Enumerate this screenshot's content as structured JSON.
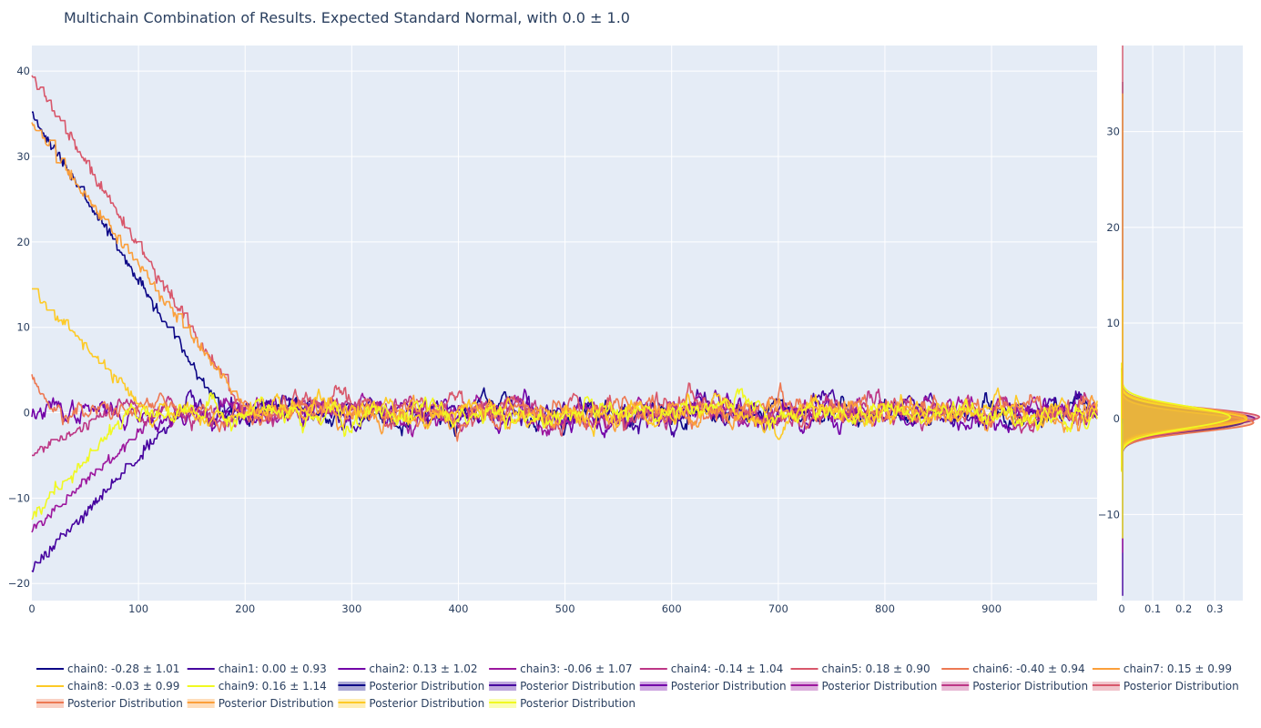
{
  "chart_data": [
    {
      "type": "line",
      "title": "Multichain Combination of Results. Expected Standard Normal, with 0.0 ± 1.0",
      "xlabel": "",
      "ylabel": "",
      "xlim": [
        0,
        999
      ],
      "ylim": [
        -22,
        43
      ],
      "x_ticks": [
        0,
        100,
        200,
        300,
        400,
        500,
        600,
        700,
        800,
        900
      ],
      "y_ticks": [
        -20,
        -10,
        0,
        10,
        20,
        30,
        40
      ],
      "grid": true,
      "legend": "bottom",
      "series": [
        {
          "name": "chain0: -0.28 ± 1.01",
          "color": "#0d0887",
          "start": 35.2,
          "burn_in": 180,
          "seed": 11
        },
        {
          "name": "chain1: 0.00 ± 0.93",
          "color": "#46039f",
          "start": -18.5,
          "burn_in": 140,
          "seed": 23
        },
        {
          "name": "chain2: 0.13 ± 1.02",
          "color": "#7201a8",
          "start": -0.5,
          "burn_in": 0,
          "seed": 37
        },
        {
          "name": "chain3: -0.06 ± 1.07",
          "color": "#9c179e",
          "start": -14.0,
          "burn_in": 120,
          "seed": 41
        },
        {
          "name": "chain4: -0.14 ± 1.04",
          "color": "#bd3786",
          "start": -5.0,
          "burn_in": 70,
          "seed": 53
        },
        {
          "name": "chain5: 0.18 ± 0.90",
          "color": "#d8576b",
          "start": 39.5,
          "burn_in": 200,
          "seed": 67
        },
        {
          "name": "chain6: -0.40 ± 0.94",
          "color": "#ed7953",
          "start": 4.5,
          "burn_in": 20,
          "seed": 71
        },
        {
          "name": "chain7: 0.15 ± 0.99",
          "color": "#fb9f3a",
          "start": 34.0,
          "burn_in": 205,
          "seed": 83
        },
        {
          "name": "chain8: -0.03 ± 0.99",
          "color": "#fdca26",
          "start": 14.5,
          "burn_in": 110,
          "seed": 97
        },
        {
          "name": "chain9: 0.16 ± 1.14",
          "color": "#f0f921",
          "start": -12.5,
          "burn_in": 90,
          "seed": 101
        }
      ]
    },
    {
      "type": "area",
      "orientation": "horizontal",
      "xlim": [
        0,
        0.39
      ],
      "ylim": [
        -19,
        39
      ],
      "x_ticks": [
        0,
        0.1,
        0.2,
        0.3
      ],
      "x_tick_labels": [
        "0",
        "0.1",
        "0.2",
        "0.3"
      ],
      "y_ticks": [
        -10,
        0,
        10,
        20,
        30
      ],
      "grid": true,
      "series": [
        {
          "name": "Posterior Distribution",
          "color": "#0d0887",
          "mean": -0.28,
          "sd": 1.01
        },
        {
          "name": "Posterior Distribution",
          "color": "#46039f",
          "mean": 0.0,
          "sd": 0.93
        },
        {
          "name": "Posterior Distribution",
          "color": "#7201a8",
          "mean": 0.13,
          "sd": 1.02
        },
        {
          "name": "Posterior Distribution",
          "color": "#9c179e",
          "mean": -0.06,
          "sd": 1.07
        },
        {
          "name": "Posterior Distribution",
          "color": "#bd3786",
          "mean": -0.14,
          "sd": 1.04
        },
        {
          "name": "Posterior Distribution",
          "color": "#d8576b",
          "mean": 0.18,
          "sd": 0.9
        },
        {
          "name": "Posterior Distribution",
          "color": "#ed7953",
          "mean": -0.4,
          "sd": 0.94
        },
        {
          "name": "Posterior Distribution",
          "color": "#fb9f3a",
          "mean": 0.15,
          "sd": 0.99
        },
        {
          "name": "Posterior Distribution",
          "color": "#fdca26",
          "mean": -0.03,
          "sd": 0.99
        },
        {
          "name": "Posterior Distribution",
          "color": "#f0f921",
          "mean": 0.16,
          "sd": 1.14
        }
      ]
    }
  ]
}
